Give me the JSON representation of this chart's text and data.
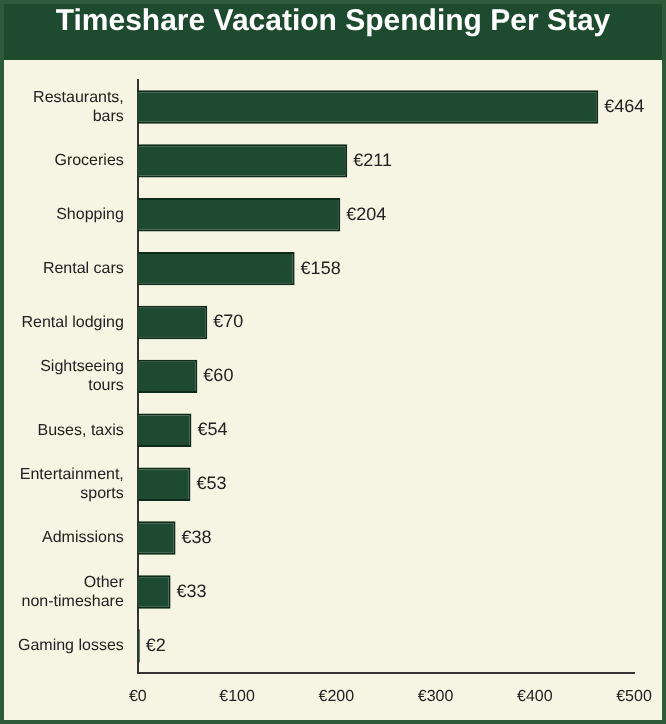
{
  "chart_data": {
    "type": "bar",
    "orientation": "horizontal",
    "title": "Timeshare Vacation Spending Per Stay",
    "categories": [
      "Restaurants, bars",
      "Groceries",
      "Shopping",
      "Rental cars",
      "Rental lodging",
      "Sightseeing tours",
      "Buses, taxis",
      "Entertainment, sports",
      "Admissions",
      "Other non-timeshare",
      "Gaming losses"
    ],
    "values": [
      464,
      211,
      204,
      158,
      70,
      60,
      54,
      53,
      38,
      33,
      2
    ],
    "value_labels": [
      "€464",
      "€211",
      "€204",
      "€158",
      "€70",
      "€60",
      "€54",
      "€53",
      "€38",
      "€33",
      "€2"
    ],
    "color": "#1d4a31",
    "xlim": [
      0,
      500
    ],
    "xticks": [
      {
        "value": 0,
        "label": "€0"
      },
      {
        "value": 100,
        "label": "€100"
      },
      {
        "value": 200,
        "label": "€200"
      },
      {
        "value": 300,
        "label": "€300"
      },
      {
        "value": 400,
        "label": "€400"
      },
      {
        "value": 500,
        "label": "€500"
      }
    ],
    "grid": false,
    "legend": false
  }
}
